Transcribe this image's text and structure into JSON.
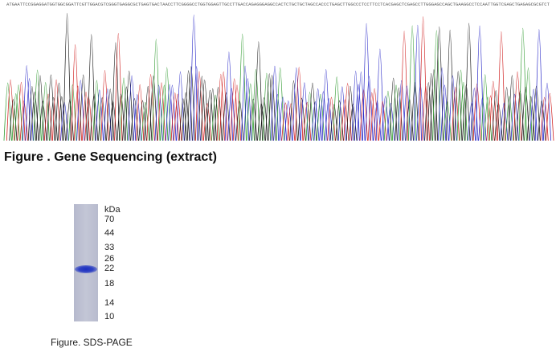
{
  "sequencing": {
    "caption": "Figure . Gene Sequencing (extract)",
    "colors": {
      "A": "#2e9a2e",
      "C": "#2b2bc8",
      "G": "#1a1a1a",
      "T": "#d02020"
    },
    "base_calls": "ATGAATTCCGGAGGATGGTGGCGGATTCGTTGGACGTCGGGTGAGGCGCTGAGTGACTAACCTTCGGGGCCTGGTGGAGTTGCCTTGACCAGAGGGAGGCCACTCTGCTGCTAGCCACCCTGAGCTTGGCCCTCCTTCCTCACGAGCTCGAGCCTTGGGAGCCAGCTGAAGGCCTCCAATTGGTCGAGCTGAGAGCGCGTCT"
  },
  "sds_page": {
    "caption": "Figure. SDS-PAGE",
    "unit": "kDa",
    "markers": [
      "70",
      "44",
      "33",
      "26",
      "22",
      "18",
      "14",
      "10"
    ]
  }
}
